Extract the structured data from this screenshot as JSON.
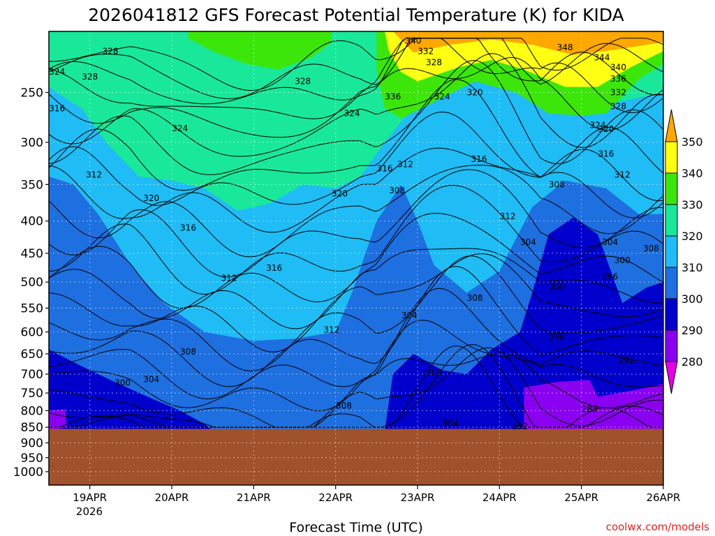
{
  "chart_data": {
    "type": "heatmap",
    "title": "2026041812 GFS Forecast Potential Temperature (K) for KIDA",
    "xlabel": "Forecast Time (UTC)",
    "ylabel": "",
    "credit": "coolwx.com/models",
    "x_tick_labels": [
      "19APR",
      "20APR",
      "21APR",
      "22APR",
      "23APR",
      "24APR",
      "25APR",
      "26APR"
    ],
    "x_year_label": "2026",
    "x_range_days": [
      18.5,
      26.0
    ],
    "y_axis": {
      "scale": "pressure (log)",
      "ticks": [
        250,
        300,
        350,
        400,
        450,
        500,
        550,
        600,
        650,
        700,
        750,
        800,
        850,
        900,
        950,
        1000
      ],
      "range": [
        200,
        1050
      ]
    },
    "colorbar": {
      "levels": [
        280,
        290,
        300,
        310,
        320,
        330,
        340,
        350
      ],
      "colors": [
        "#e600e6",
        "#8a00f0",
        "#0000cc",
        "#1e6fe0",
        "#1fbcf5",
        "#19e89a",
        "#3ce60a",
        "#ffff14",
        "#ffa800"
      ]
    },
    "ground_color": "#a0522d",
    "surface_pressure_hpa": 855,
    "contour_interval_k": 4,
    "contour_labels": [
      {
        "day": 19.25,
        "p": 215,
        "t": 328
      },
      {
        "day": 18.6,
        "p": 232,
        "t": 324
      },
      {
        "day": 18.6,
        "p": 265,
        "t": 316
      },
      {
        "day": 19.0,
        "p": 236,
        "t": 328
      },
      {
        "day": 20.1,
        "p": 285,
        "t": 324
      },
      {
        "day": 19.05,
        "p": 338,
        "t": 312
      },
      {
        "day": 19.75,
        "p": 368,
        "t": 320
      },
      {
        "day": 20.2,
        "p": 410,
        "t": 316
      },
      {
        "day": 21.6,
        "p": 240,
        "t": 328
      },
      {
        "day": 22.2,
        "p": 270,
        "t": 324
      },
      {
        "day": 22.05,
        "p": 362,
        "t": 320
      },
      {
        "day": 21.25,
        "p": 475,
        "t": 316
      },
      {
        "day": 20.7,
        "p": 493,
        "t": 312
      },
      {
        "day": 22.95,
        "p": 207,
        "t": 340
      },
      {
        "day": 23.1,
        "p": 215,
        "t": 332
      },
      {
        "day": 23.2,
        "p": 224,
        "t": 328
      },
      {
        "day": 23.7,
        "p": 250,
        "t": 320
      },
      {
        "day": 23.3,
        "p": 254,
        "t": 324
      },
      {
        "day": 22.7,
        "p": 254,
        "t": 336
      },
      {
        "day": 22.6,
        "p": 330,
        "t": 316
      },
      {
        "day": 22.85,
        "p": 325,
        "t": 312
      },
      {
        "day": 22.75,
        "p": 358,
        "t": 308
      },
      {
        "day": 23.75,
        "p": 319,
        "t": 316
      },
      {
        "day": 24.8,
        "p": 212,
        "t": 348
      },
      {
        "day": 25.25,
        "p": 220,
        "t": 344
      },
      {
        "day": 25.45,
        "p": 228,
        "t": 340
      },
      {
        "day": 25.45,
        "p": 238,
        "t": 336
      },
      {
        "day": 25.45,
        "p": 250,
        "t": 332
      },
      {
        "day": 25.45,
        "p": 263,
        "t": 328
      },
      {
        "day": 25.2,
        "p": 282,
        "t": 324
      },
      {
        "day": 25.3,
        "p": 286,
        "t": 320
      },
      {
        "day": 25.3,
        "p": 313,
        "t": 316
      },
      {
        "day": 25.5,
        "p": 338,
        "t": 312
      },
      {
        "day": 24.7,
        "p": 350,
        "t": 308
      },
      {
        "day": 24.1,
        "p": 393,
        "t": 312
      },
      {
        "day": 24.35,
        "p": 432,
        "t": 304
      },
      {
        "day": 25.35,
        "p": 432,
        "t": 304
      },
      {
        "day": 25.5,
        "p": 462,
        "t": 300
      },
      {
        "day": 25.85,
        "p": 442,
        "t": 308
      },
      {
        "day": 25.35,
        "p": 490,
        "t": 296
      },
      {
        "day": 24.7,
        "p": 508,
        "t": 300
      },
      {
        "day": 23.7,
        "p": 530,
        "t": 308
      },
      {
        "day": 22.9,
        "p": 565,
        "t": 304
      },
      {
        "day": 21.95,
        "p": 595,
        "t": 312
      },
      {
        "day": 20.2,
        "p": 645,
        "t": 308
      },
      {
        "day": 19.4,
        "p": 723,
        "t": 300
      },
      {
        "day": 19.75,
        "p": 713,
        "t": 304
      },
      {
        "day": 22.1,
        "p": 786,
        "t": 308
      },
      {
        "day": 23.2,
        "p": 695,
        "t": 300
      },
      {
        "day": 24.7,
        "p": 612,
        "t": 296
      },
      {
        "day": 25.55,
        "p": 665,
        "t": 292
      },
      {
        "day": 25.1,
        "p": 795,
        "t": 288
      },
      {
        "day": 24.25,
        "p": 848,
        "t": 292
      },
      {
        "day": 23.4,
        "p": 838,
        "t": 304
      }
    ],
    "regions": {
      "upper_green_trough": [
        [
          20.2,
          205
        ],
        [
          20.5,
          215
        ],
        [
          20.9,
          225
        ],
        [
          21.3,
          230
        ],
        [
          21.7,
          220
        ],
        [
          21.95,
          208
        ]
      ],
      "purple_cold_pools": [
        [
          [
            18.55,
            800
          ],
          [
            18.7,
            795
          ],
          [
            18.7,
            850
          ],
          [
            18.55,
            850
          ]
        ],
        [
          [
            24.3,
            735
          ],
          [
            25.1,
            715
          ],
          [
            25.2,
            760
          ],
          [
            25.7,
            740
          ],
          [
            26.0,
            725
          ],
          [
            26.0,
            850
          ],
          [
            24.3,
            850
          ]
        ]
      ]
    }
  }
}
